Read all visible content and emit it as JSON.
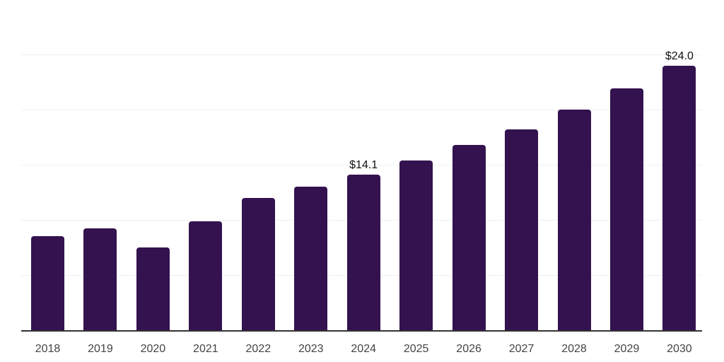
{
  "chart_data": {
    "type": "bar",
    "categories": [
      "2018",
      "2019",
      "2020",
      "2021",
      "2022",
      "2023",
      "2024",
      "2025",
      "2026",
      "2027",
      "2028",
      "2029",
      "2030"
    ],
    "values": [
      8.5,
      9.2,
      7.5,
      9.9,
      12.0,
      13.0,
      14.1,
      15.4,
      16.8,
      18.2,
      20.0,
      21.9,
      24.0
    ],
    "value_labels": [
      "",
      "",
      "",
      "",
      "",
      "",
      "$14.1",
      "",
      "",
      "",
      "",
      "",
      "$24.0"
    ],
    "title": "",
    "xlabel": "",
    "ylabel": "",
    "ylim": [
      0,
      30
    ],
    "gridline_step": 5,
    "grid": true,
    "legend": "none",
    "colors": {
      "bar": "#34124F",
      "axis_line": "#333333",
      "gridline": "#f1f1f1",
      "tick_label": "#444444",
      "value_label": "#111111",
      "background": "#ffffff"
    }
  }
}
